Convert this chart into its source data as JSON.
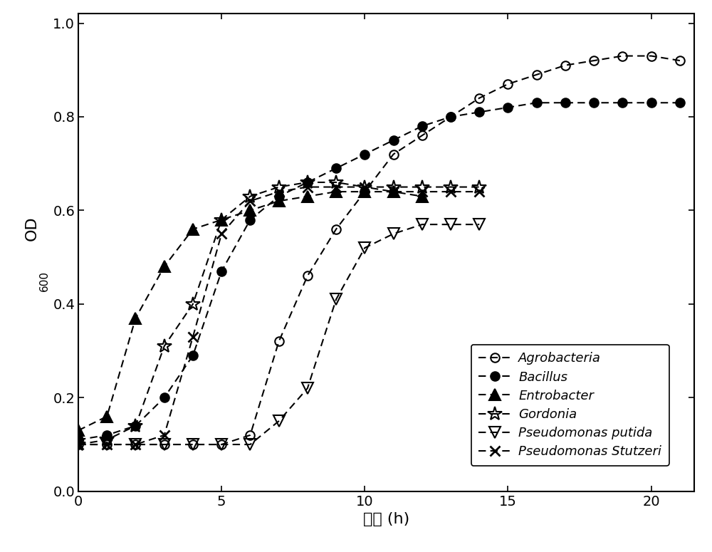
{
  "xlabel": "时间 (h)",
  "xlim": [
    0,
    21.5
  ],
  "ylim": [
    0.0,
    1.02
  ],
  "yticks": [
    0.0,
    0.2,
    0.4,
    0.6,
    0.8,
    1.0
  ],
  "xticks": [
    0,
    5,
    10,
    15,
    20
  ],
  "Agrobacteria": {
    "x": [
      0,
      1,
      2,
      3,
      4,
      5,
      6,
      7,
      8,
      9,
      10,
      11,
      12,
      13,
      14,
      15,
      16,
      17,
      18,
      19,
      20,
      21
    ],
    "y": [
      0.1,
      0.1,
      0.1,
      0.1,
      0.1,
      0.1,
      0.12,
      0.32,
      0.46,
      0.56,
      0.64,
      0.72,
      0.76,
      0.8,
      0.84,
      0.87,
      0.89,
      0.91,
      0.92,
      0.93,
      0.93,
      0.92
    ],
    "marker": "o",
    "fillstyle": "none",
    "linestyle": "--",
    "label": "Agrobacteria"
  },
  "Bacillus": {
    "x": [
      0,
      1,
      2,
      3,
      4,
      5,
      6,
      7,
      8,
      9,
      10,
      11,
      12,
      13,
      14,
      15,
      16,
      17,
      18,
      19,
      20,
      21
    ],
    "y": [
      0.11,
      0.12,
      0.14,
      0.2,
      0.29,
      0.47,
      0.58,
      0.63,
      0.66,
      0.69,
      0.72,
      0.75,
      0.78,
      0.8,
      0.81,
      0.82,
      0.83,
      0.83,
      0.83,
      0.83,
      0.83,
      0.83
    ],
    "marker": "o",
    "fillstyle": "full",
    "linestyle": "--",
    "label": "Bacillus"
  },
  "Entrobacter": {
    "x": [
      0,
      1,
      2,
      3,
      4,
      5,
      6,
      7,
      8,
      9,
      10,
      11,
      12
    ],
    "y": [
      0.13,
      0.16,
      0.37,
      0.48,
      0.56,
      0.58,
      0.6,
      0.62,
      0.63,
      0.64,
      0.64,
      0.64,
      0.63
    ],
    "marker": "^",
    "fillstyle": "full",
    "linestyle": "--",
    "label": "Entrobacter"
  },
  "Gordonia": {
    "x": [
      0,
      1,
      2,
      3,
      4,
      5,
      6,
      7,
      8,
      9,
      10,
      11,
      12,
      13,
      14
    ],
    "y": [
      0.1,
      0.11,
      0.14,
      0.31,
      0.4,
      0.58,
      0.63,
      0.65,
      0.66,
      0.66,
      0.65,
      0.65,
      0.65,
      0.65,
      0.65
    ],
    "marker": "*",
    "fillstyle": "none",
    "linestyle": "--",
    "label": "Gordonia"
  },
  "Pseudomonas_putida": {
    "x": [
      0,
      1,
      2,
      3,
      4,
      5,
      6,
      7,
      8,
      9,
      10,
      11,
      12,
      13,
      14
    ],
    "y": [
      0.1,
      0.1,
      0.1,
      0.1,
      0.1,
      0.1,
      0.1,
      0.15,
      0.22,
      0.41,
      0.52,
      0.55,
      0.57,
      0.57,
      0.57
    ],
    "marker": "v",
    "fillstyle": "none",
    "linestyle": "--",
    "label": "Pseudomonas putida"
  },
  "Pseudomonas_Stutzeri": {
    "x": [
      0,
      1,
      2,
      3,
      4,
      5,
      6,
      7,
      8,
      9,
      10,
      11,
      12,
      13,
      14
    ],
    "y": [
      0.1,
      0.1,
      0.1,
      0.12,
      0.33,
      0.55,
      0.62,
      0.64,
      0.65,
      0.65,
      0.65,
      0.64,
      0.64,
      0.64,
      0.64
    ],
    "marker": "x",
    "fillstyle": "full",
    "linestyle": "--",
    "label": "Pseudomonas Stutzeri"
  }
}
